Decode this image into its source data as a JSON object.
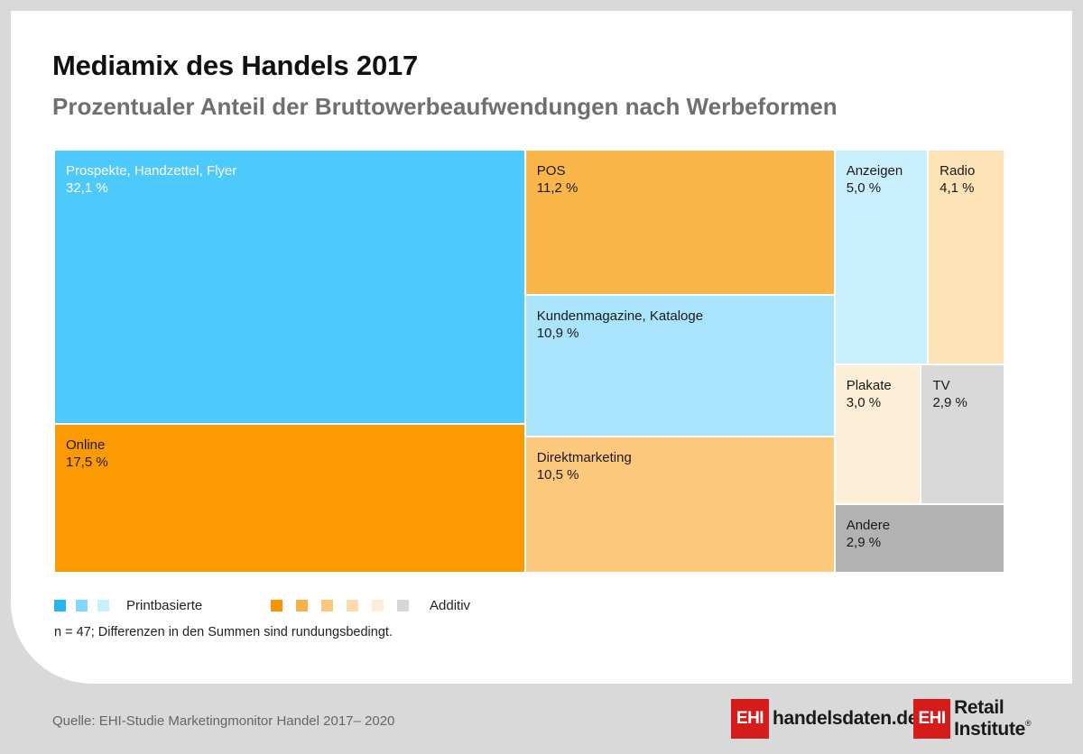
{
  "header": {
    "title": "Mediamix des Handels 2017",
    "subtitle": "Prozentualer Anteil der Bruttowerbeaufwendungen nach Werbeformen"
  },
  "chart_data": {
    "type": "treemap",
    "title": "Mediamix des Handels 2017",
    "subtitle": "Prozentualer Anteil der Bruttowerbeaufwendungen nach Werbeformen",
    "unit": "%",
    "items": [
      {
        "label": "Prospekte, Handzettel, Flyer",
        "value": 32.1,
        "value_label": "32,1 %",
        "group": "Printbasierte",
        "color": "#4dc9fb"
      },
      {
        "label": "Online",
        "value": 17.5,
        "value_label": "17,5 %",
        "group": "Additiv",
        "color": "#fc9a04"
      },
      {
        "label": "POS",
        "value": 11.2,
        "value_label": "11,2 %",
        "group": "Additiv",
        "color": "#fbb649"
      },
      {
        "label": "Kundenmagazine, Kataloge",
        "value": 10.9,
        "value_label": "10,9 %",
        "group": "Printbasierte",
        "color": "#a9e4fc"
      },
      {
        "label": "Direktmarketing",
        "value": 10.5,
        "value_label": "10,5 %",
        "group": "Additiv",
        "color": "#fcc97c"
      },
      {
        "label": "Anzeigen",
        "value": 5.0,
        "value_label": "5,0 %",
        "group": "Printbasierte",
        "color": "#c9eefd"
      },
      {
        "label": "Radio",
        "value": 4.1,
        "value_label": "4,1 %",
        "group": "Additiv",
        "color": "#fde2b6"
      },
      {
        "label": "Plakate",
        "value": 3.0,
        "value_label": "3,0 %",
        "group": "Additiv",
        "color": "#fdeed8"
      },
      {
        "label": "TV",
        "value": 2.9,
        "value_label": "2,9 %",
        "group": "Additiv",
        "color": "#d9d9d9"
      },
      {
        "label": "Andere",
        "value": 2.9,
        "value_label": "2,9 %",
        "group": "Additiv",
        "color": "#b2b2b2"
      }
    ]
  },
  "legend": {
    "print_label": "Printbasierte",
    "print_colors": [
      "#29b6ee",
      "#84d7fa",
      "#c9eefd"
    ],
    "additiv_label": "Additiv",
    "additiv_colors": [
      "#f59300",
      "#f8b04a",
      "#fbc680",
      "#fcdcae",
      "#fdecd6",
      "#d6d6d6"
    ]
  },
  "note": "n = 47; Differenzen in den Summen sind rundungsbedingt.",
  "footer": {
    "source": "Quelle: EHI-Studie Marketingmonitor Handel 2017– 2020",
    "logo1_mark": "EHI",
    "logo1_text": "handelsdaten.de",
    "logo2_mark": "EHI",
    "logo2_text": "Retail Institute",
    "logo2_reg": "®"
  }
}
